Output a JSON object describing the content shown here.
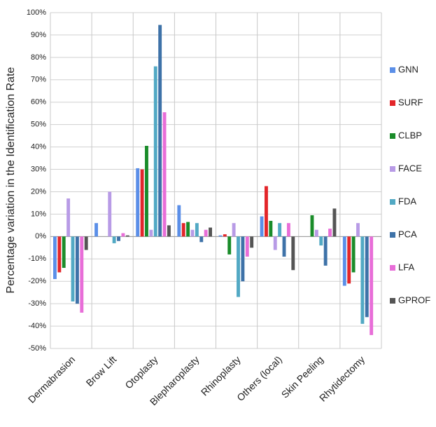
{
  "chart_data": {
    "type": "bar",
    "ylabel": "Percentage variation in the Identification Rate",
    "categories": [
      "Dermabrasion",
      "Brow Lift",
      "Otoplasty",
      "Blepharoplasty",
      "Rhinoplasty",
      "Others (local)",
      "Skin Peeling",
      "Rhytidectomy"
    ],
    "series": [
      {
        "name": "GNN",
        "color": "#5b8fe8",
        "values": [
          -19,
          6,
          30.5,
          14,
          0.5,
          9,
          0,
          -22
        ]
      },
      {
        "name": "SURF",
        "color": "#e3262a",
        "values": [
          -16,
          0,
          30,
          6,
          1,
          22.5,
          0,
          -21
        ]
      },
      {
        "name": "CLBP",
        "color": "#1a8c2a",
        "values": [
          -14,
          0,
          40.5,
          6.5,
          -8,
          7,
          9.5,
          -16
        ]
      },
      {
        "name": "FACE",
        "color": "#b89be6",
        "values": [
          17,
          20,
          3,
          3,
          6,
          -6,
          3,
          6
        ]
      },
      {
        "name": "FDA",
        "color": "#52a9c4",
        "values": [
          -29,
          -3,
          76,
          6,
          -27,
          6,
          -4,
          -39
        ]
      },
      {
        "name": "PCA",
        "color": "#3e72a8",
        "values": [
          -30,
          -2,
          94.5,
          -2.5,
          -20,
          -9,
          -13,
          -36
        ]
      },
      {
        "name": "LFA",
        "color": "#e86ed8",
        "values": [
          -34,
          1.5,
          55.5,
          3,
          -9,
          6,
          3.5,
          -44
        ]
      },
      {
        "name": "GPROF",
        "color": "#555555",
        "values": [
          -6,
          0.5,
          5,
          4,
          -5,
          -15,
          12.5,
          0
        ]
      }
    ],
    "ylim": [
      -50,
      100
    ],
    "yticks": [
      {
        "value": -50,
        "label": "-50%"
      },
      {
        "value": -40,
        "label": "-40%"
      },
      {
        "value": -30,
        "label": "-30%"
      },
      {
        "value": -20,
        "label": "-20%"
      },
      {
        "value": -10,
        "label": "-10%"
      },
      {
        "value": 0,
        "label": "0%"
      },
      {
        "value": 10,
        "label": "10%"
      },
      {
        "value": 20,
        "label": "20%"
      },
      {
        "value": 30,
        "label": "30%"
      },
      {
        "value": 40,
        "label": "40%"
      },
      {
        "value": 50,
        "label": "50%"
      },
      {
        "value": 60,
        "label": "60%"
      },
      {
        "value": 70,
        "label": "70%"
      },
      {
        "value": 80,
        "label": "80%"
      },
      {
        "value": 90,
        "label": "90%"
      },
      {
        "value": 100,
        "label": "100%"
      }
    ],
    "grid": true
  }
}
